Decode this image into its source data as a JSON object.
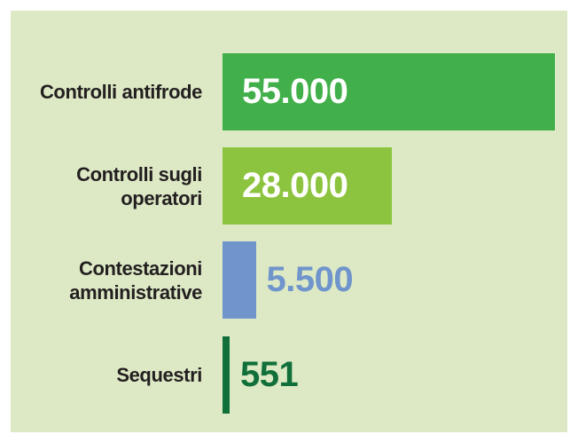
{
  "chart_data": {
    "type": "bar",
    "orientation": "horizontal",
    "categories": [
      "Controlli antifrode",
      "Controlli sugli operatori",
      "Contestazioni amministrative",
      "Sequestri"
    ],
    "values": [
      55000,
      28000,
      5500,
      551
    ],
    "value_labels": [
      "55.000",
      "28.000",
      "5.500",
      "551"
    ],
    "colors": [
      "#41b04a",
      "#8dc43f",
      "#6f95cc",
      "#11703a"
    ],
    "xlim": [
      0,
      55000
    ]
  }
}
